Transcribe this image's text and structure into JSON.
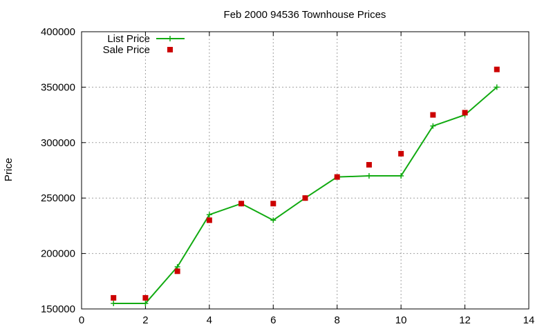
{
  "chart_data": {
    "type": "line",
    "title": "Feb 2000 94536 Townhouse Prices",
    "xlabel": "",
    "ylabel": "Price",
    "xlim": [
      0,
      14
    ],
    "ylim": [
      150000,
      400000
    ],
    "x_ticks": [
      0,
      2,
      4,
      6,
      8,
      10,
      12,
      14
    ],
    "y_ticks": [
      150000,
      200000,
      250000,
      300000,
      350000,
      400000
    ],
    "x_tick_labels": [
      "0",
      "2",
      "4",
      "6",
      "8",
      "10",
      "12",
      "14"
    ],
    "y_tick_labels": [
      "150000",
      "200000",
      "250000",
      "300000",
      "350000",
      "400000"
    ],
    "grid": true,
    "legend_position": "top-left",
    "series": [
      {
        "name": "List Price",
        "style": "line-with-plus-markers",
        "color": "#11aa11",
        "x": [
          1,
          2,
          3,
          4,
          5,
          6,
          7,
          8,
          9,
          10,
          11,
          12,
          13
        ],
        "values": [
          155000,
          155000,
          188000,
          235000,
          245000,
          230000,
          250000,
          269000,
          270000,
          270000,
          315000,
          325000,
          350000
        ]
      },
      {
        "name": "Sale Price",
        "style": "square-markers",
        "color": "#cc0000",
        "x": [
          1,
          2,
          3,
          4,
          5,
          6,
          7,
          8,
          9,
          10,
          11,
          12,
          13
        ],
        "values": [
          160000,
          160000,
          184000,
          230000,
          245000,
          245000,
          250000,
          269000,
          280000,
          290000,
          325000,
          327000,
          366000
        ]
      }
    ]
  }
}
